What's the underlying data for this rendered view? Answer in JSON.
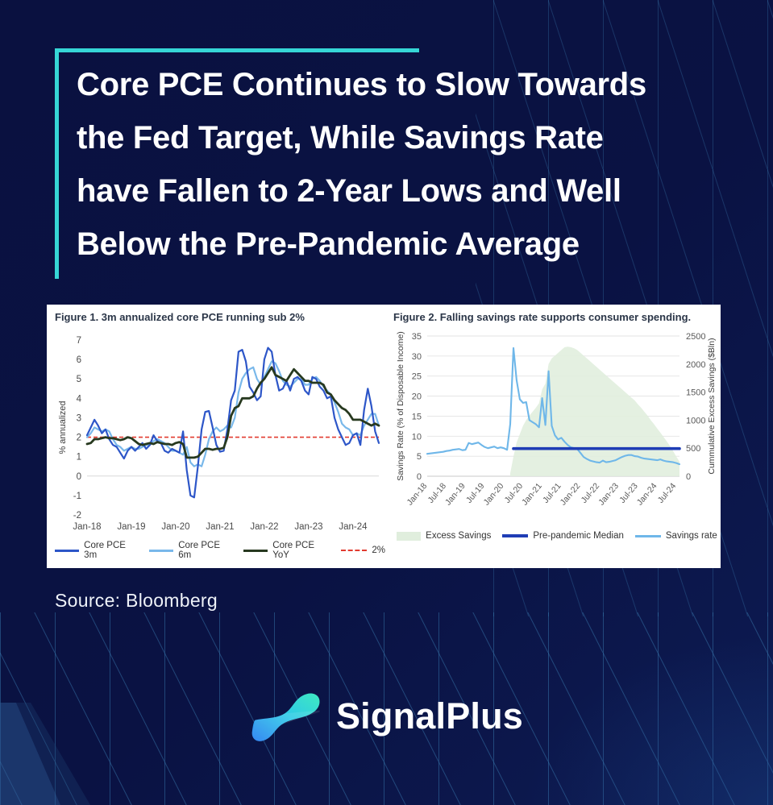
{
  "page": {
    "title_lines": [
      "Core PCE Continues to Slow Towards",
      "the Fed Target, While Savings Rate",
      "have Fallen to 2-Year Lows and Well",
      "Below the Pre-Pandemic Average"
    ],
    "source": "Source: Bloomberg",
    "brand": "SignalPlus"
  },
  "colors": {
    "background": "#0a1243",
    "accent_teal": "#36d6d6",
    "panel": "#ffffff",
    "pattern_line": "#3b82b8",
    "grid": "#d9d9d9",
    "tick_text": "#4a4a4a",
    "logo_gradient_start": "#3fe9c0",
    "logo_gradient_end": "#1f7bf2"
  },
  "chart_data": [
    {
      "type": "line",
      "title": "Figure 1. 3m annualized core PCE running sub 2%",
      "ylabel": "% annualized",
      "ylim": [
        -2,
        7
      ],
      "yticks": [
        7,
        6,
        5,
        4,
        3,
        2,
        1,
        0,
        -1,
        -2
      ],
      "grid": "zero line only",
      "legend_position": "bottom",
      "n_points": 80,
      "x_start": "Jan-18",
      "x_end": "Aug-24",
      "xtick_step": 12,
      "xtick_labels": [
        "Jan-18",
        "Jan-19",
        "Jan-20",
        "Jan-21",
        "Jan-22",
        "Jan-23",
        "Jan-24"
      ],
      "series": [
        {
          "name": "Core PCE 3m",
          "color": "#2d56c8",
          "width": 2.2,
          "z": 2,
          "swatch": "line",
          "values": [
            2.1,
            2.5,
            2.9,
            2.6,
            2.2,
            2.4,
            1.9,
            1.6,
            1.5,
            1.2,
            0.9,
            1.3,
            1.5,
            1.3,
            1.5,
            1.7,
            1.4,
            1.6,
            2.1,
            1.8,
            1.7,
            1.3,
            1.2,
            1.4,
            1.3,
            1.2,
            2.3,
            0.3,
            -1.0,
            -1.1,
            0.5,
            2.4,
            3.3,
            3.35,
            2.5,
            1.6,
            1.25,
            1.3,
            2.4,
            3.9,
            4.4,
            6.4,
            6.5,
            5.9,
            4.6,
            4.3,
            3.9,
            4.1,
            6.0,
            6.6,
            6.4,
            5.2,
            4.4,
            4.5,
            4.9,
            4.4,
            5.0,
            5.1,
            4.9,
            4.4,
            4.2,
            5.1,
            5.0,
            4.6,
            4.4,
            4.0,
            4.1,
            3.0,
            2.4,
            2.0,
            1.6,
            1.7,
            2.1,
            2.2,
            1.6,
            3.4,
            4.5,
            3.6,
            2.3,
            1.7
          ]
        },
        {
          "name": "Core PCE 6m",
          "color": "#79b8ea",
          "width": 2.2,
          "z": 1,
          "swatch": "line",
          "values": [
            2.0,
            2.2,
            2.5,
            2.4,
            2.3,
            2.4,
            2.3,
            1.9,
            1.6,
            1.5,
            1.3,
            1.4,
            1.5,
            1.4,
            1.4,
            1.5,
            1.6,
            1.6,
            1.8,
            1.9,
            1.8,
            1.7,
            1.5,
            1.3,
            1.3,
            1.2,
            1.1,
            1.5,
            0.7,
            0.5,
            0.6,
            0.5,
            1.1,
            1.9,
            2.3,
            2.5,
            2.3,
            2.4,
            2.6,
            2.5,
            3.0,
            4.3,
            5.0,
            5.3,
            5.5,
            5.6,
            5.0,
            4.7,
            5.1,
            5.5,
            5.9,
            5.8,
            5.4,
            4.9,
            4.7,
            4.6,
            4.8,
            5.0,
            5.0,
            4.7,
            4.7,
            5.0,
            5.1,
            4.9,
            4.6,
            4.4,
            4.2,
            3.8,
            3.3,
            2.7,
            2.5,
            2.4,
            2.1,
            2.2,
            2.1,
            2.6,
            2.9,
            3.2,
            3.2,
            2.6
          ]
        },
        {
          "name": "Core PCE YoY",
          "color": "#27391f",
          "width": 2.8,
          "z": 3,
          "swatch": "line",
          "values": [
            1.65,
            1.7,
            1.9,
            1.9,
            1.95,
            2.0,
            1.95,
            1.95,
            1.9,
            1.85,
            1.9,
            2.0,
            1.95,
            1.8,
            1.65,
            1.6,
            1.65,
            1.7,
            1.65,
            1.75,
            1.7,
            1.65,
            1.65,
            1.6,
            1.7,
            1.75,
            1.65,
            0.95,
            0.95,
            0.95,
            1.0,
            1.2,
            1.4,
            1.4,
            1.35,
            1.4,
            1.4,
            1.45,
            2.0,
            3.1,
            3.5,
            3.6,
            4.0,
            4.0,
            4.0,
            4.1,
            4.5,
            4.8,
            5.0,
            5.3,
            5.6,
            5.2,
            5.1,
            5.0,
            4.9,
            5.2,
            5.5,
            5.3,
            5.1,
            4.9,
            4.9,
            4.8,
            4.8,
            4.8,
            4.7,
            4.3,
            4.2,
            3.9,
            3.7,
            3.5,
            3.4,
            3.2,
            2.9,
            2.9,
            2.9,
            2.8,
            2.7,
            2.6,
            2.7,
            2.6
          ]
        },
        {
          "name": "2%",
          "color": "#e23b30",
          "swatch": "dashed",
          "constant": 2,
          "z": 0
        }
      ]
    },
    {
      "type": "line+area dual-axis",
      "title": "Figure 2. Falling savings rate supports consumer spending.",
      "ylabel_left": "Savings Rate (% of Disposable Income)",
      "ylabel_right": "Cummulative Excess Savings ($Bln)",
      "ylim_left": [
        0,
        35
      ],
      "yticks_left": [
        0,
        5,
        10,
        15,
        20,
        25,
        30,
        35
      ],
      "ylim_right": [
        0,
        2500
      ],
      "yticks_right": [
        0,
        500,
        1000,
        1500,
        2000,
        2500
      ],
      "legend_position": "bottom",
      "n_points": 80,
      "x_start": "Jan-18",
      "x_end": "Aug-24",
      "xtick_step": 6,
      "xtick_labels": [
        "Jan-18",
        "Jul-18",
        "Jan-19",
        "Jul-19",
        "Jan-20",
        "Jul-20",
        "Jan-21",
        "Jul-21",
        "Jan-22",
        "Jul-22",
        "Jan-23",
        "Jul-23",
        "Jan-24",
        "Jul-24"
      ],
      "series": [
        {
          "name": "Excess Savings",
          "axis": "right",
          "color": "#e0eedd",
          "swatch": "area",
          "z": 1,
          "start_index": 26,
          "values": [
            50,
            350,
            600,
            750,
            900,
            1000,
            1080,
            1150,
            1220,
            1300,
            1550,
            1650,
            2000,
            2100,
            2150,
            2200,
            2250,
            2300,
            2310,
            2300,
            2280,
            2250,
            2200,
            2150,
            2100,
            2050,
            2000,
            1950,
            1900,
            1850,
            1800,
            1750,
            1700,
            1650,
            1600,
            1550,
            1500,
            1450,
            1400,
            1350,
            1280,
            1220,
            1150,
            1080,
            1000,
            930,
            850,
            780,
            700,
            620,
            540,
            450,
            350,
            260
          ]
        },
        {
          "name": "Pre-pandemic Median",
          "axis": "left",
          "color": "#1f3db5",
          "width": 3.6,
          "swatch": "thick-line",
          "z": 3,
          "start_index": 27,
          "constant": 6.9
        },
        {
          "name": "Savings rate",
          "axis": "left",
          "color": "#6fb7e9",
          "width": 2.1,
          "swatch": "line",
          "z": 2,
          "values": [
            5.6,
            5.7,
            5.8,
            5.9,
            6.0,
            6.1,
            6.3,
            6.4,
            6.6,
            6.7,
            6.8,
            6.5,
            6.6,
            8.3,
            8.0,
            8.2,
            8.4,
            7.8,
            7.3,
            7.0,
            7.2,
            7.4,
            7.0,
            7.2,
            7.0,
            6.6,
            13.0,
            32.0,
            24.0,
            19.2,
            18.3,
            18.5,
            14.0,
            13.5,
            13.0,
            12.2,
            19.5,
            12.8,
            26.2,
            12.6,
            10.2,
            9.2,
            9.6,
            8.6,
            7.8,
            7.2,
            7.0,
            6.8,
            5.8,
            4.8,
            4.3,
            3.9,
            3.7,
            3.5,
            3.4,
            3.9,
            3.5,
            3.6,
            3.8,
            4.0,
            4.4,
            4.8,
            5.1,
            5.3,
            5.3,
            5.0,
            4.9,
            4.6,
            4.4,
            4.3,
            4.2,
            4.1,
            4.0,
            4.2,
            3.9,
            3.7,
            3.6,
            3.5,
            3.3,
            3.0
          ]
        }
      ]
    }
  ]
}
